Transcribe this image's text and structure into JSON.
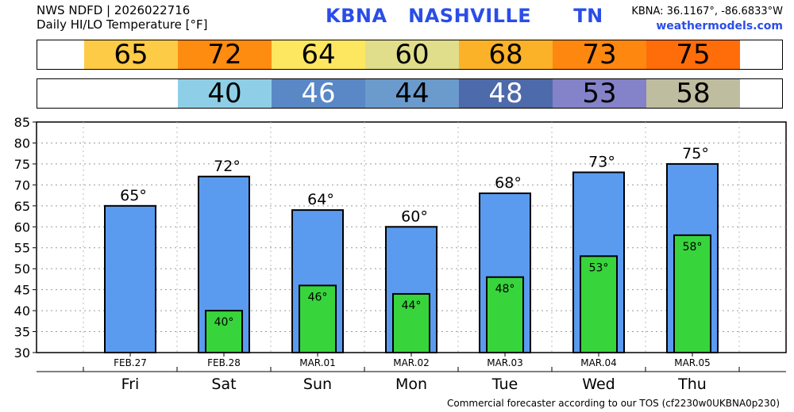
{
  "header": {
    "line1": "NWS NDFD | 2026022716",
    "line2": "Daily HI/LO Temperature [°F]",
    "station_title": "KBNA   NASHVILLE      TN",
    "coords": "KBNA: 36.1167°, -86.6833°W",
    "site": "weathermodels.com"
  },
  "hi_strip": [
    {
      "value": "65",
      "color": "#fdcb45"
    },
    {
      "value": "72",
      "color": "#fe8c10"
    },
    {
      "value": "64",
      "color": "#fee760"
    },
    {
      "value": "60",
      "color": "#e0dd8b"
    },
    {
      "value": "68",
      "color": "#fbb229"
    },
    {
      "value": "73",
      "color": "#fe8710"
    },
    {
      "value": "75",
      "color": "#fe6d0a"
    }
  ],
  "lo_strip": [
    {
      "value": "",
      "color": "#ffffff"
    },
    {
      "value": "40",
      "color": "#8ecfe7",
      "text_color": "#000000"
    },
    {
      "value": "46",
      "color": "#5a88c6",
      "text_color": "#ffffff"
    },
    {
      "value": "44",
      "color": "#6b9acc",
      "text_color": "#000000"
    },
    {
      "value": "48",
      "color": "#4d6aaa",
      "text_color": "#ffffff"
    },
    {
      "value": "53",
      "color": "#8482c8",
      "text_color": "#000000"
    },
    {
      "value": "58",
      "color": "#bfbd9f",
      "text_color": "#000000"
    }
  ],
  "chart_data": {
    "type": "bar",
    "categories": [
      "Fri",
      "Sat",
      "Sun",
      "Mon",
      "Tue",
      "Wed",
      "Thu"
    ],
    "dates": [
      "FEB.27",
      "FEB.28",
      "MAR.01",
      "MAR.02",
      "MAR.03",
      "MAR.04",
      "MAR.05"
    ],
    "series": [
      {
        "values": [
          65,
          72,
          64,
          60,
          68,
          73,
          75
        ],
        "color": "#5a9bef"
      },
      {
        "values": [
          null,
          40,
          46,
          44,
          48,
          53,
          58
        ],
        "color": "#38d43c"
      }
    ],
    "hi_labels": [
      "65°",
      "72°",
      "64°",
      "60°",
      "68°",
      "73°",
      "75°"
    ],
    "lo_labels": [
      "",
      "40°",
      "46°",
      "44°",
      "48°",
      "53°",
      "58°"
    ],
    "yticks": [
      30,
      35,
      40,
      45,
      50,
      55,
      60,
      65,
      70,
      75,
      80,
      85
    ],
    "ylim": [
      30,
      85
    ],
    "grid": true
  },
  "footer": "Commercial forecaster according to our TOS (cf2230w0UKBNA0p230)"
}
